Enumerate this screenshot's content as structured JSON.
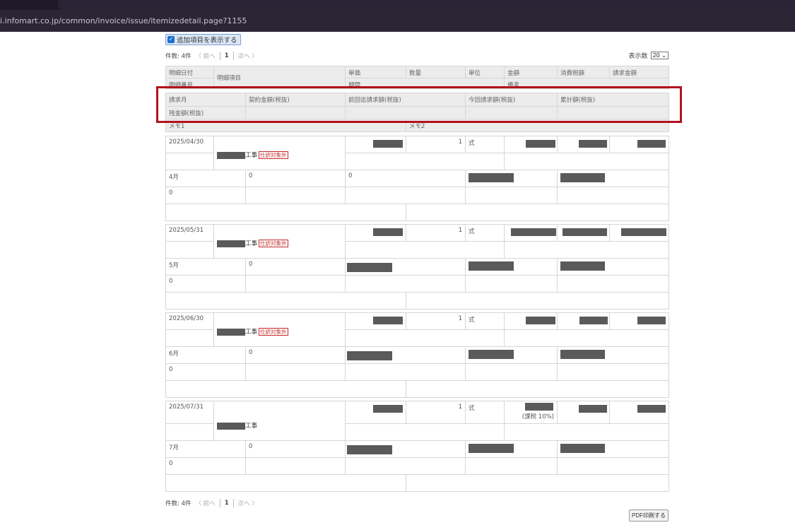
{
  "browser": {
    "url": "i.infomart.co.jp/common/invoice/issue/itemizedetail.page?1155"
  },
  "toggle": {
    "label": "追加項目を表示する",
    "checked": true
  },
  "pager": {
    "count": "件数: 4件",
    "prev": "〈 前へ",
    "page": "1",
    "next": "次へ 〉"
  },
  "per_page": {
    "label": "表示数",
    "value": "20"
  },
  "header": {
    "date": "明細日付",
    "number": "明細番号",
    "item": "明細項目",
    "price": "単価",
    "period": "期間",
    "qty": "数量",
    "unit": "単位",
    "amount": "金額",
    "note": "備考",
    "tax": "消費税額",
    "total": "請求金額",
    "month": "請求月",
    "contract": "契約金額(税抜)",
    "previous": "前回迄請求額(税抜)",
    "current": "今回請求額(税抜)",
    "cumulative": "累計額(税抜)",
    "remaining": "残金額(税抜)",
    "memo1": "メモ1",
    "memo2": "メモ2"
  },
  "rows": [
    {
      "date": "2025/04/30",
      "item_suffix": "工事",
      "badge": "仕訳対象外",
      "qty": "1",
      "unit": "式",
      "tax_note": "",
      "month": "4月",
      "contract": "0",
      "previous": "0",
      "remaining": "0"
    },
    {
      "date": "2025/05/31",
      "item_suffix": "工事",
      "badge": "仕訳対象外",
      "qty": "1",
      "unit": "式",
      "tax_note": "",
      "month": "5月",
      "contract": "0",
      "previous": "",
      "remaining": "0"
    },
    {
      "date": "2025/06/30",
      "item_suffix": "工事",
      "badge": "仕訳対象外",
      "qty": "1",
      "unit": "式",
      "tax_note": "",
      "month": "6月",
      "contract": "0",
      "previous": "",
      "remaining": "0"
    },
    {
      "date": "2025/07/31",
      "item_suffix": "工事",
      "badge": "",
      "qty": "1",
      "unit": "式",
      "tax_note": "(課税 10%)",
      "month": "7月",
      "contract": "0",
      "previous": "",
      "remaining": "0"
    }
  ],
  "footer": {
    "pdf_label": "PDF印刷する"
  },
  "colors": {
    "highlight_frame": "#b3121c",
    "redaction": "#5a5a5a"
  }
}
